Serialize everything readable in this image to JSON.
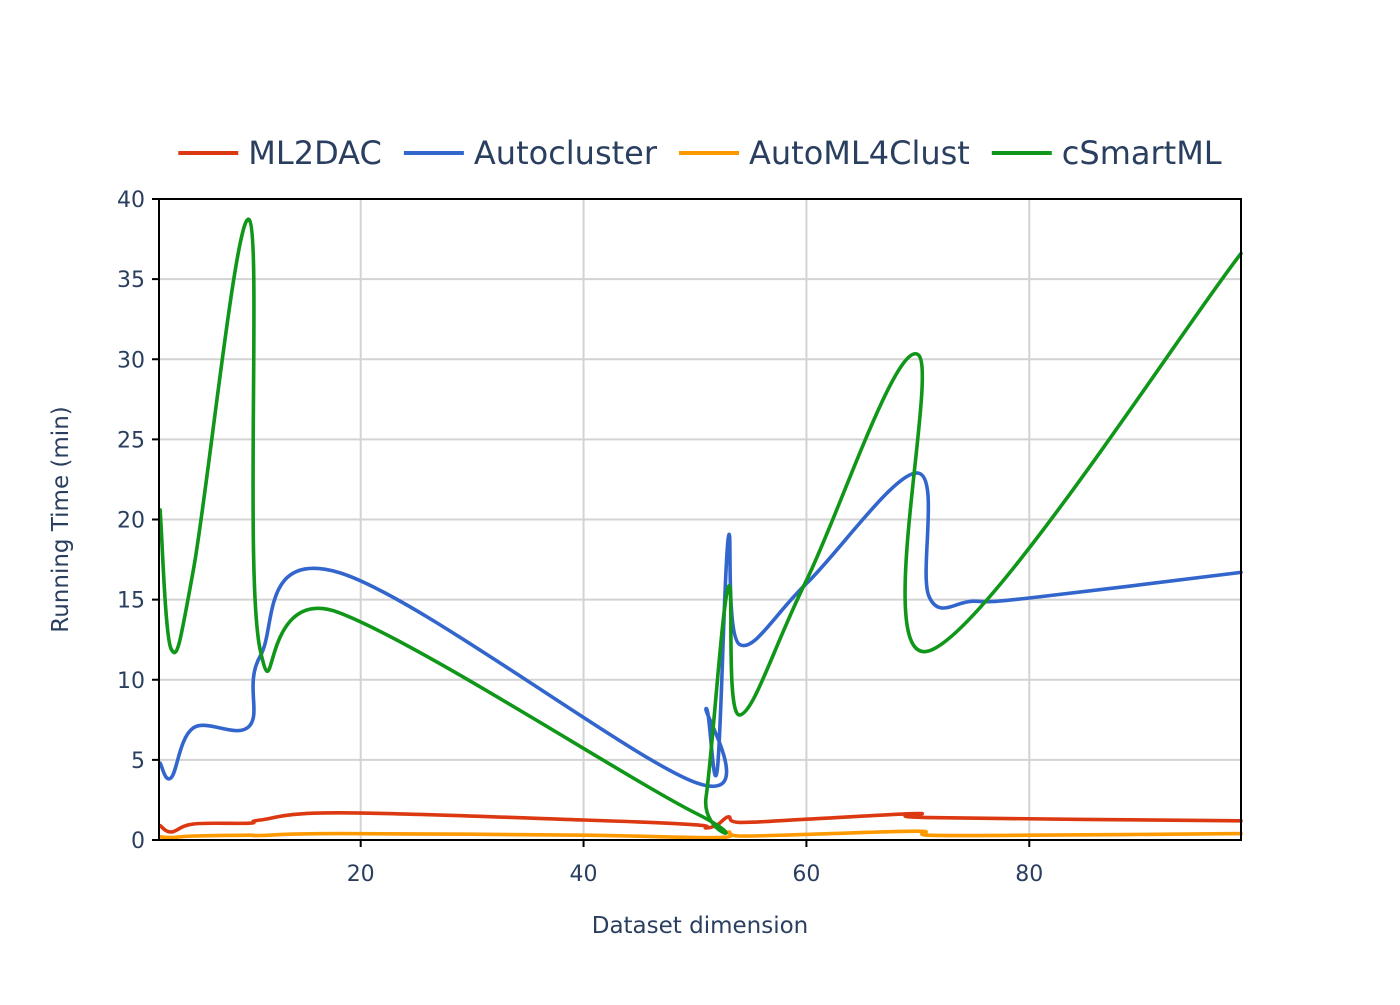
{
  "chart_data": {
    "type": "line",
    "title": "",
    "xlabel": "Dataset dimension",
    "ylabel": "Running Time (min)",
    "xlim": [
      1.9,
      99
    ],
    "ylim": [
      0,
      40
    ],
    "xticks": [
      20,
      40,
      60,
      80
    ],
    "yticks": [
      0,
      5,
      10,
      15,
      20,
      25,
      30,
      35,
      40
    ],
    "grid": true,
    "legend_position": "top-center",
    "series": [
      {
        "name": "ML2DAC",
        "color": "#dc3912",
        "x": [
          2,
          3,
          5,
          10,
          11,
          18,
          40,
          50,
          51,
          52,
          53,
          54,
          60,
          70,
          71,
          99
        ],
        "y": [
          0.9,
          0.5,
          1.0,
          1.05,
          1.25,
          1.7,
          1.25,
          0.95,
          0.75,
          0.95,
          1.45,
          1.1,
          1.3,
          1.65,
          1.4,
          1.2
        ]
      },
      {
        "name": "Autocluster",
        "color": "#3366cc",
        "x": [
          2,
          3,
          5,
          10,
          11,
          18,
          50,
          51,
          52,
          53,
          54,
          60,
          70,
          71,
          75,
          80,
          99
        ],
        "y": [
          4.8,
          3.9,
          7.0,
          7.1,
          11.5,
          16.7,
          3.6,
          8.2,
          4.4,
          18.9,
          12.2,
          16.0,
          22.9,
          15.2,
          14.9,
          15.1,
          16.7
        ]
      },
      {
        "name": "AutoML4Clust",
        "color": "#ff9900",
        "x": [
          2,
          3,
          5,
          10,
          11,
          18,
          40,
          52,
          53,
          54,
          60,
          70,
          71,
          80,
          99
        ],
        "y": [
          0.2,
          0.15,
          0.25,
          0.3,
          0.28,
          0.4,
          0.3,
          0.15,
          0.5,
          0.25,
          0.35,
          0.55,
          0.3,
          0.3,
          0.4
        ]
      },
      {
        "name": "cSmartML",
        "color": "#109618",
        "x": [
          2,
          3,
          5,
          10,
          11,
          18,
          50,
          51,
          53,
          54,
          60,
          70,
          71,
          99
        ],
        "y": [
          20.6,
          11.9,
          16.9,
          38.7,
          11.8,
          14.2,
          1.7,
          2.7,
          15.8,
          7.8,
          16.2,
          30.3,
          11.8,
          36.6
        ]
      }
    ]
  }
}
